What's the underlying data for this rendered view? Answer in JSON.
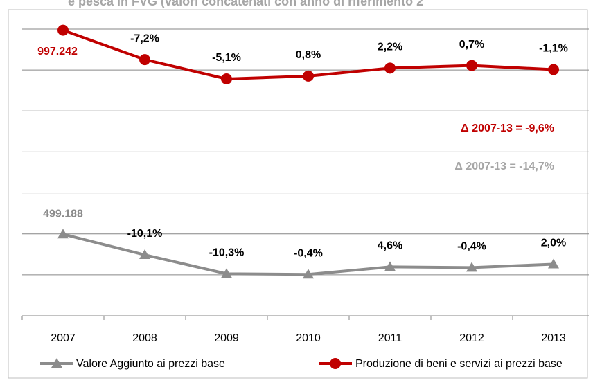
{
  "chart_data": {
    "type": "line",
    "title": "e pesca in FVG (valori concatenati con anno di riferimento 2",
    "categories": [
      "2007",
      "2008",
      "2009",
      "2010",
      "2011",
      "2012",
      "2013"
    ],
    "series": [
      {
        "name": "Valore Aggiunto ai prezzi base",
        "color": "#8c8c8c",
        "marker": "triangle",
        "values": [
          499188,
          448770,
          402547,
          400937,
          419380,
          417702,
          426056
        ],
        "labels": [
          "499.188",
          "-10,1%",
          "-10,3%",
          "-0,4%",
          "4,6%",
          "-0,4%",
          "2,0%"
        ]
      },
      {
        "name": "Produzione di beni e servizi ai prezzi base",
        "color": "#c00000",
        "marker": "circle",
        "values": [
          997242,
          925441,
          878244,
          885270,
          904746,
          911079,
          901057
        ],
        "labels": [
          "997.242",
          "-7,2%",
          "-5,1%",
          "0,8%",
          "2,2%",
          "0,7%",
          "-1,1%"
        ]
      }
    ],
    "annotations": [
      {
        "text": "Δ 2007-13 = -9,6%",
        "color": "#c00000"
      },
      {
        "text": "Δ 2007-13 = -14,7%",
        "color": "#a6a6a6"
      }
    ],
    "ylim": [
      300000,
      1000000
    ],
    "yticks": [
      300000,
      400000,
      500000,
      600000,
      700000,
      800000,
      900000,
      1000000
    ],
    "grid": true,
    "legend": "bottom"
  }
}
